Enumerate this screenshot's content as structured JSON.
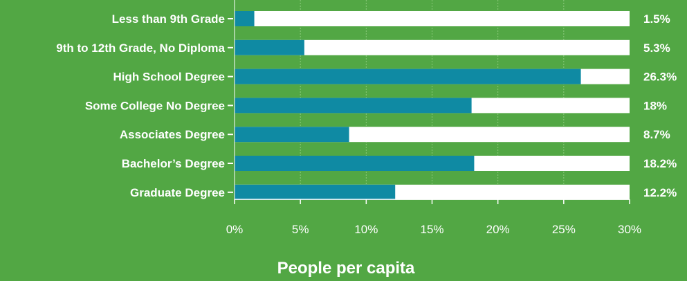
{
  "chart_data": {
    "type": "bar",
    "orientation": "horizontal",
    "categories": [
      "Less than 9th Grade",
      "9th to 12th Grade, No Diploma",
      "High School Degree",
      "Some College No Degree",
      "Associates Degree",
      "Bachelor’s Degree",
      "Graduate Degree"
    ],
    "values": [
      1.5,
      5.3,
      26.3,
      18,
      8.7,
      18.2,
      12.2
    ],
    "value_labels": [
      "1.5%",
      "5.3%",
      "26.3%",
      "18%",
      "8.7%",
      "18.2%",
      "12.2%"
    ],
    "xlim": [
      0,
      30
    ],
    "ticks": [
      0,
      5,
      10,
      15,
      20,
      25,
      30
    ],
    "tick_labels": [
      "0%",
      "5%",
      "10%",
      "15%",
      "20%",
      "25%",
      "30%"
    ],
    "xlabel": "People per capita",
    "title": "",
    "colors": {
      "background": "#52a744",
      "bar": "#0f8aa3",
      "track": "#ffffff",
      "text": "#ffffff",
      "grid": "#8cc97c"
    },
    "grid": true
  }
}
